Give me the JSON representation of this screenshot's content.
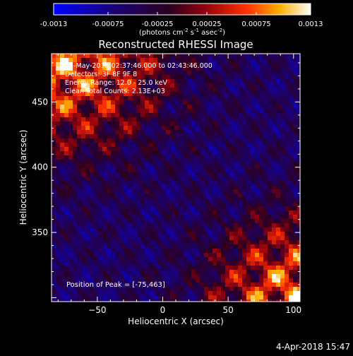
{
  "chart_data": {
    "type": "heatmap",
    "title": "Reconstructed RHESSI Image",
    "xlabel": "Heliocentric X (arcsec)",
    "ylabel": "Heliocentric Y (arcsec)",
    "xlim": [
      -85,
      105
    ],
    "ylim": [
      297,
      487
    ],
    "xticks": [
      -50,
      0,
      50,
      100
    ],
    "yticks": [
      350,
      400,
      450
    ],
    "colorbar": {
      "min": -0.0013,
      "max": 0.0013,
      "ticks": [
        -0.0013,
        -0.00075,
        -0.00025,
        0.00025,
        0.00075,
        0.0013
      ],
      "tick_labels": [
        "-0.0013",
        "-0.00075",
        "-0.00025",
        "0.00025",
        "0.00075",
        "0.0013"
      ],
      "unit_prefix": "(photons cm",
      "unit_exp1": "-2",
      "unit_mid": " s",
      "unit_exp2": "-1",
      "unit_mid2": " asec",
      "unit_exp3": "-2",
      "unit_suffix": ")"
    },
    "grid": false,
    "info_lines": [
      "15-May-2018 02:37:46.000 to 02:43:46.000",
      "Detectors: 3F 8F 9F 8",
      "Energy Range: 12.0 - 25.0 keV",
      "Clean   Total Counts: 2.13E+03"
    ],
    "peak_label": "Position of Peak = [-75,463]",
    "peak": {
      "x": -75,
      "y": 463
    },
    "timestamp": "4-Apr-2018 15:47"
  }
}
